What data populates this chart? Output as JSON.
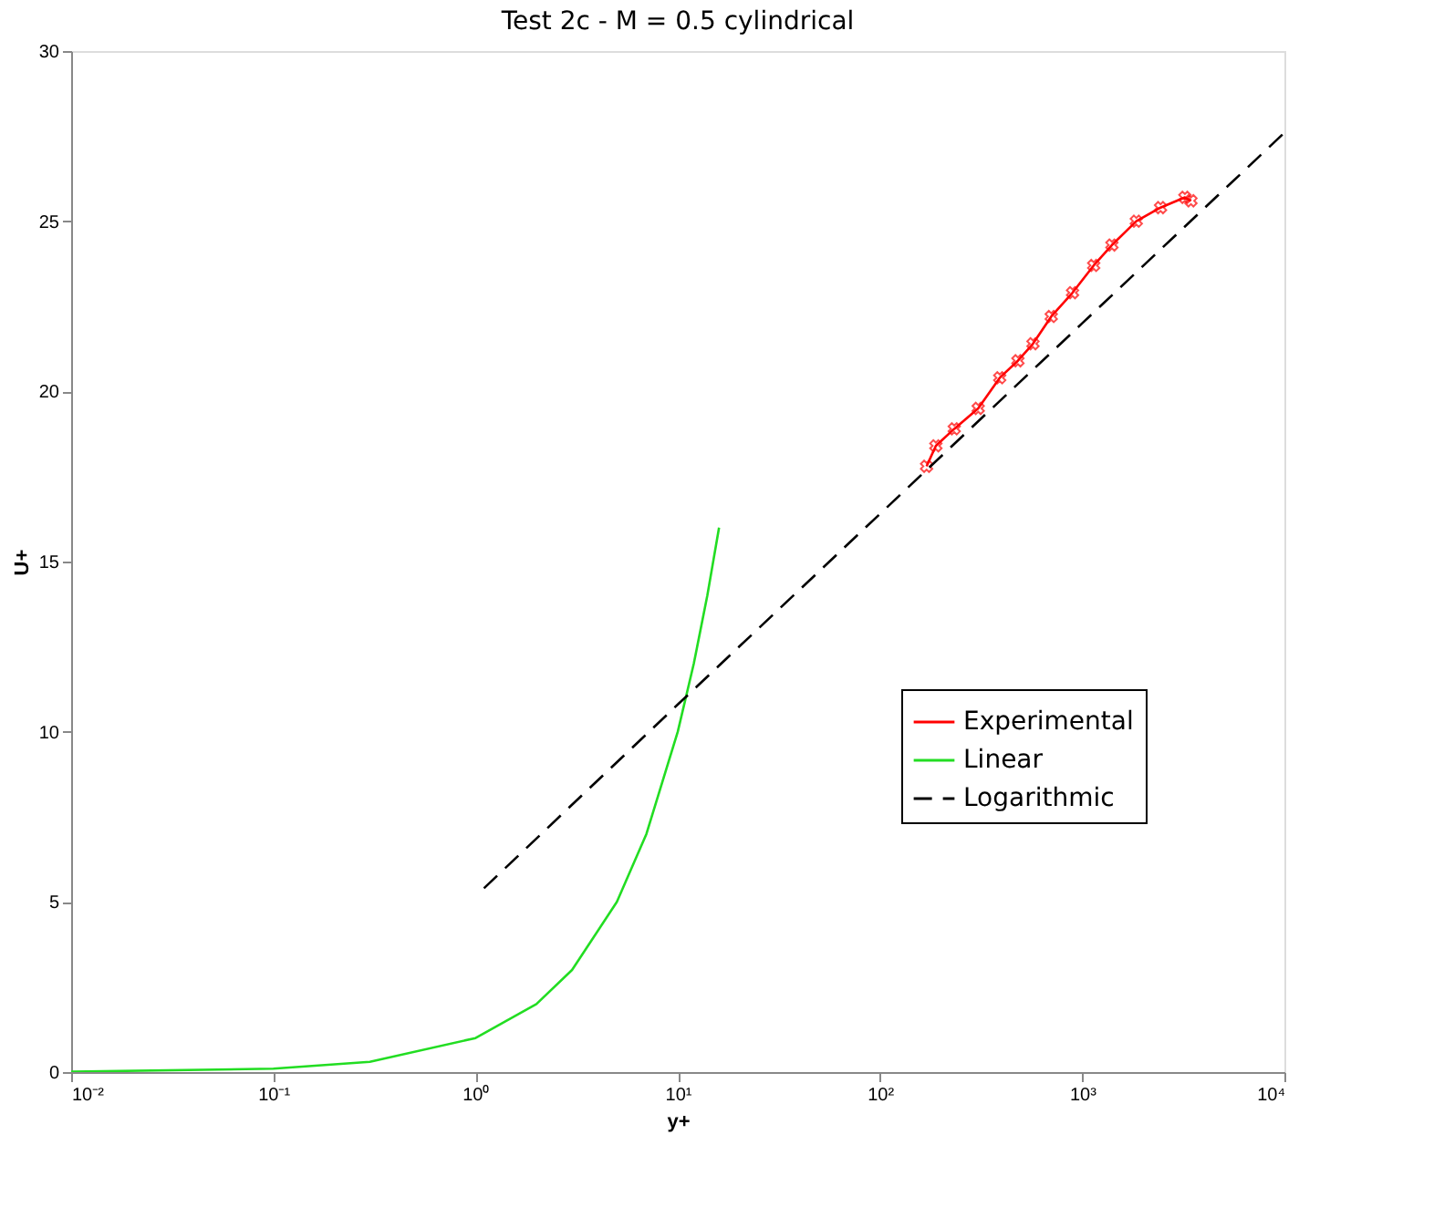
{
  "chart_data": {
    "type": "line",
    "title": "Test 2c - M = 0.5 cylindrical",
    "xlabel": "y+",
    "ylabel": "U+",
    "log": "x",
    "xlim": [
      0.01,
      10000
    ],
    "ylim": [
      0,
      30
    ],
    "xticks": [
      {
        "value": 0.01,
        "label": "10⁻²"
      },
      {
        "value": 0.1,
        "label": "10⁻¹"
      },
      {
        "value": 1,
        "label": "10⁰"
      },
      {
        "value": 10,
        "label": "10¹"
      },
      {
        "value": 100,
        "label": "10²"
      },
      {
        "value": 1000,
        "label": "10³"
      },
      {
        "value": 10000,
        "label": "10⁴"
      }
    ],
    "yticks": [
      0,
      5,
      10,
      15,
      20,
      25,
      30
    ],
    "grid": false,
    "legend": "right",
    "series": [
      {
        "name": "Experimental",
        "color": "#ff0000",
        "marker": "cross",
        "line_style": "solid",
        "x": [
          170,
          189,
          233,
          306,
          391,
          481,
          571,
          703,
          896,
          1140,
          1403,
          1852,
          2440,
          3220,
          3450
        ],
        "values": [
          17.8,
          18.4,
          18.9,
          19.5,
          20.4,
          20.9,
          21.4,
          22.2,
          22.9,
          23.7,
          24.3,
          25.0,
          25.4,
          25.7,
          25.6
        ]
      },
      {
        "name": "Linear",
        "color": "#22dd22",
        "marker": "none",
        "line_style": "solid",
        "x": [
          0.01,
          0.1,
          0.3,
          1,
          2,
          3,
          5,
          7,
          10,
          12,
          14,
          16
        ],
        "values": [
          0.01,
          0.1,
          0.3,
          1,
          2,
          3,
          5,
          7,
          10,
          12,
          14,
          16
        ]
      },
      {
        "name": "Logarithmic",
        "color": "#000000",
        "marker": "none",
        "line_style": "dashed",
        "x": [
          1.1,
          10,
          100,
          1000,
          10000
        ],
        "values": [
          5.4,
          10.8,
          16.4,
          22.0,
          27.6
        ]
      }
    ]
  }
}
